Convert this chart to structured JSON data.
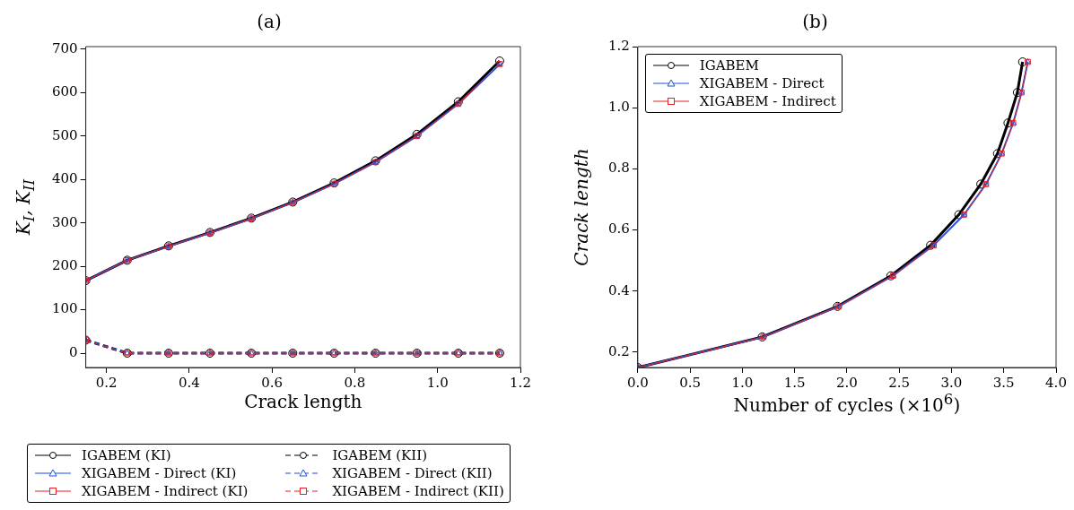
{
  "chart_data": [
    {
      "type": "line",
      "title": "(a)",
      "xlabel": "Crack length",
      "ylabel": "K$_{I}$, K$_{II}$",
      "x": [
        0.15,
        0.25,
        0.35,
        0.45,
        0.55,
        0.65,
        0.75,
        0.85,
        0.95,
        1.05,
        1.15
      ],
      "series": [
        {
          "name": "IGABEM (KI)",
          "color": "#000000",
          "marker": "circle",
          "line_style": "solid",
          "values": [
            167,
            214,
            247,
            278,
            311,
            348,
            392,
            443,
            504,
            579,
            673
          ]
        },
        {
          "name": "XIGABEM - Direct (KI)",
          "color": "#1f4fe0",
          "marker": "triangle",
          "line_style": "solid",
          "values": [
            167,
            214,
            246,
            277,
            310,
            347,
            390,
            440,
            500,
            574,
            665
          ]
        },
        {
          "name": "XIGABEM - Indirect (KI)",
          "color": "#e8202a",
          "marker": "square",
          "line_style": "solid",
          "values": [
            167,
            214,
            246,
            277,
            310,
            347,
            390,
            440,
            500,
            574,
            666
          ]
        },
        {
          "name": "IGABEM (KII)",
          "color": "#000000",
          "marker": "circle",
          "line_style": "dashed",
          "values": [
            30,
            0,
            0,
            0,
            0,
            0,
            0,
            0,
            0,
            0,
            0
          ]
        },
        {
          "name": "XIGABEM - Direct (KII)",
          "color": "#1f4fe0",
          "marker": "triangle",
          "line_style": "dashed",
          "values": [
            30,
            0,
            0,
            0,
            0,
            0,
            0,
            0,
            0,
            0,
            0
          ]
        },
        {
          "name": "XIGABEM - Indirect (KII)",
          "color": "#e8202a",
          "marker": "square",
          "line_style": "dashed",
          "values": [
            30,
            0,
            0,
            0,
            0,
            0,
            0,
            0,
            0,
            0,
            0
          ]
        }
      ],
      "xlim": [
        0.15,
        1.2
      ],
      "xticks": [
        0.2,
        0.4,
        0.6,
        0.8,
        {
          "value": 1.0,
          "label": "1.0"
        },
        1.2
      ],
      "ylim": [
        -33,
        706
      ],
      "yticks": [
        0,
        100,
        200,
        300,
        400,
        500,
        600,
        700
      ],
      "grid": false,
      "legend": "bottom"
    },
    {
      "type": "line",
      "title": "(b)",
      "xlabel": "Number of cycles (×10$^{6}$)",
      "ylabel": "Crack length",
      "series": [
        {
          "name": "IGABEM",
          "color": "#000000",
          "marker": "circle",
          "line_style": "solid",
          "x": [
            0,
            1.19,
            1.91,
            2.42,
            2.8,
            3.07,
            3.28,
            3.44,
            3.54,
            3.63,
            3.68
          ],
          "values": [
            0.15,
            0.25,
            0.35,
            0.45,
            0.55,
            0.65,
            0.75,
            0.85,
            0.95,
            1.05,
            1.15
          ]
        },
        {
          "name": "XIGABEM - Direct",
          "color": "#1f4fe0",
          "marker": "triangle",
          "line_style": "solid",
          "x": [
            0,
            1.2,
            1.92,
            2.44,
            2.83,
            3.12,
            3.33,
            3.48,
            3.59,
            3.67,
            3.73
          ],
          "values": [
            0.15,
            0.25,
            0.35,
            0.45,
            0.55,
            0.65,
            0.75,
            0.85,
            0.95,
            1.05,
            1.15
          ]
        },
        {
          "name": "XIGABEM - Indirect",
          "color": "#e8202a",
          "marker": "square",
          "line_style": "solid",
          "x": [
            0,
            1.2,
            1.92,
            2.44,
            2.83,
            3.12,
            3.33,
            3.48,
            3.59,
            3.67,
            3.73
          ],
          "values": [
            0.15,
            0.25,
            0.35,
            0.45,
            0.55,
            0.65,
            0.75,
            0.85,
            0.95,
            1.05,
            1.15
          ]
        }
      ],
      "xlim": [
        0,
        4
      ],
      "xticks": [
        {
          "value": 0,
          "label": "0.0"
        },
        0.5,
        {
          "value": 1,
          "label": "1.0"
        },
        1.5,
        {
          "value": 2,
          "label": "2.0"
        },
        2.5,
        {
          "value": 3,
          "label": "3.0"
        },
        3.5,
        {
          "value": 4,
          "label": "4.0"
        }
      ],
      "ylim": [
        0.15,
        1.2
      ],
      "yticks": [
        0.2,
        0.4,
        0.6,
        0.8,
        {
          "value": 1,
          "label": "1.0"
        },
        1.2
      ],
      "grid": false,
      "legend": "top left"
    }
  ]
}
